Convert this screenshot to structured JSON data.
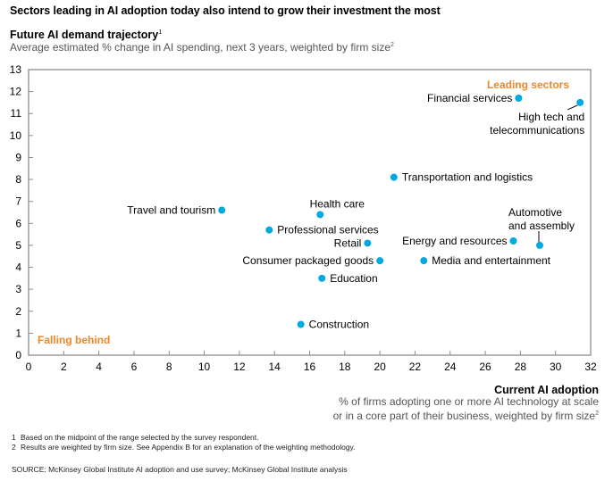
{
  "chart_data": {
    "type": "scatter",
    "title": "Sectors leading in AI adoption today also intend to grow their investment the most",
    "ylabel": "Future AI demand trajectory",
    "ylabel_sup": "1",
    "ylabel_sub": "Average estimated % change in AI spending, next 3 years, weighted by firm size",
    "ylabel_sub_sup": "2",
    "xlabel": "Current AI adoption",
    "xlabel_sub_line1": "% of firms adopting one or more AI technology at scale",
    "xlabel_sub_line2": "or in a core part of their business, weighted by firm size",
    "xlabel_sub_sup": "2",
    "xlim": [
      0,
      32
    ],
    "ylim": [
      0,
      13
    ],
    "xticks": [
      0,
      2,
      4,
      6,
      8,
      10,
      12,
      14,
      16,
      18,
      20,
      22,
      24,
      26,
      28,
      30,
      32
    ],
    "yticks": [
      0,
      1,
      2,
      3,
      4,
      5,
      6,
      7,
      8,
      9,
      10,
      11,
      12,
      13
    ],
    "grid": false,
    "marker_color": "#00A9E0",
    "annotation_color": "#F0862A",
    "annotations": [
      {
        "text": "Leading sectors",
        "position": "top-right"
      },
      {
        "text": "Falling behind",
        "position": "bottom-left"
      }
    ],
    "points": [
      {
        "label": "Financial services",
        "x": 27.9,
        "y": 11.7,
        "label_side": "left"
      },
      {
        "label": "High tech and telecommunications",
        "lines": [
          "High tech and",
          "telecommunications"
        ],
        "x": 31.4,
        "y": 11.5,
        "label_side": "below-left-leader"
      },
      {
        "label": "Transportation and logistics",
        "x": 20.8,
        "y": 8.1,
        "label_side": "right"
      },
      {
        "label": "Travel and tourism",
        "x": 11.0,
        "y": 6.6,
        "label_side": "left"
      },
      {
        "label": "Health care",
        "x": 16.6,
        "y": 6.4,
        "label_side": "above"
      },
      {
        "label": "Professional services",
        "x": 13.7,
        "y": 5.7,
        "label_side": "right"
      },
      {
        "label": "Retail",
        "x": 19.3,
        "y": 5.1,
        "label_side": "left"
      },
      {
        "label": "Energy and resources",
        "x": 27.6,
        "y": 5.2,
        "label_side": "left"
      },
      {
        "label": "Automotive and assembly",
        "lines": [
          "Automotive",
          "and assembly"
        ],
        "x": 29.1,
        "y": 5.0,
        "label_side": "above-leader"
      },
      {
        "label": "Consumer packaged goods",
        "x": 20.0,
        "y": 4.3,
        "label_side": "left"
      },
      {
        "label": "Media and entertainment",
        "x": 22.5,
        "y": 4.3,
        "label_side": "right"
      },
      {
        "label": "Education",
        "x": 16.7,
        "y": 3.5,
        "label_side": "right"
      },
      {
        "label": "Construction",
        "x": 15.5,
        "y": 1.4,
        "label_side": "right"
      }
    ]
  },
  "footnotes": [
    {
      "num": "1",
      "text": "Based on the midpoint of the range selected by the survey respondent."
    },
    {
      "num": "2",
      "text": "Results are weighted by firm size. See Appendix B for an explanation of the weighting methodology."
    }
  ],
  "source": "SOURCE:  McKinsey Global Institute AI adoption and use survey; McKinsey Global Institute analysis"
}
